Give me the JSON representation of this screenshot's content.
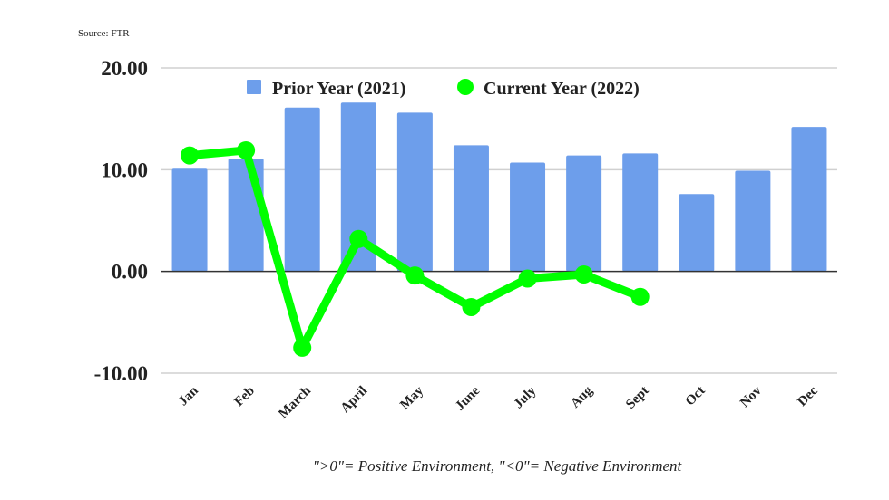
{
  "chart_data": {
    "type": "bar",
    "title": "",
    "source": "Source: FTR",
    "note": "\">0\"= Positive Environment, \"<0\"= Negative Environment",
    "xlabel": "",
    "ylabel": "",
    "ylim": [
      -10,
      20
    ],
    "yticks": [
      20,
      10,
      0,
      -10
    ],
    "ytick_labels": [
      "20.00",
      "10.00",
      "0.00",
      "-10.00"
    ],
    "grid": true,
    "legend_position": "top",
    "categories": [
      "Jan",
      "Feb",
      "March",
      "April",
      "May",
      "June",
      "July",
      "Aug",
      "Sept",
      "Oct",
      "Nov",
      "Dec"
    ],
    "series": [
      {
        "name": "Prior Year (2021)",
        "type": "bar",
        "color": "#6d9eeb",
        "values": [
          10.1,
          11.1,
          16.1,
          16.6,
          15.6,
          12.4,
          10.7,
          11.4,
          11.6,
          7.6,
          9.9,
          14.2
        ]
      },
      {
        "name": "Current Year (2022)",
        "type": "line",
        "color": "#00ff00",
        "values": [
          11.4,
          11.9,
          -7.5,
          3.2,
          -0.4,
          -3.5,
          -0.7,
          -0.3,
          -2.5,
          null,
          null,
          null
        ]
      }
    ]
  }
}
